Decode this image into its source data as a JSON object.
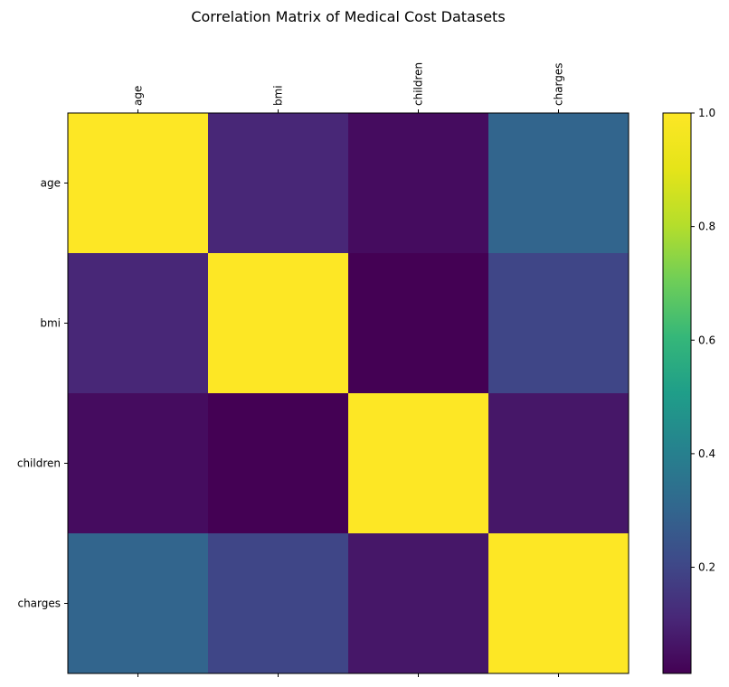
{
  "chart_data": {
    "type": "heatmap",
    "title": "Correlation Matrix of Medical Cost Datasets",
    "row_labels": [
      "age",
      "bmi",
      "children",
      "charges"
    ],
    "col_labels": [
      "age",
      "bmi",
      "children",
      "charges"
    ],
    "values": [
      [
        1.0,
        0.109,
        0.042,
        0.299
      ],
      [
        0.109,
        1.0,
        0.013,
        0.198
      ],
      [
        0.042,
        0.013,
        1.0,
        0.068
      ],
      [
        0.299,
        0.198,
        0.068,
        1.0
      ]
    ],
    "colormap": "viridis",
    "colorbar": {
      "min": 0.013,
      "max": 1.0,
      "ticks": [
        0.2,
        0.4,
        0.6,
        0.8,
        1.0
      ],
      "tick_labels": [
        "0.2",
        "0.4",
        "0.6",
        "0.8",
        "1.0"
      ]
    },
    "xaxis_position": "top",
    "xlabel": "",
    "ylabel": ""
  }
}
